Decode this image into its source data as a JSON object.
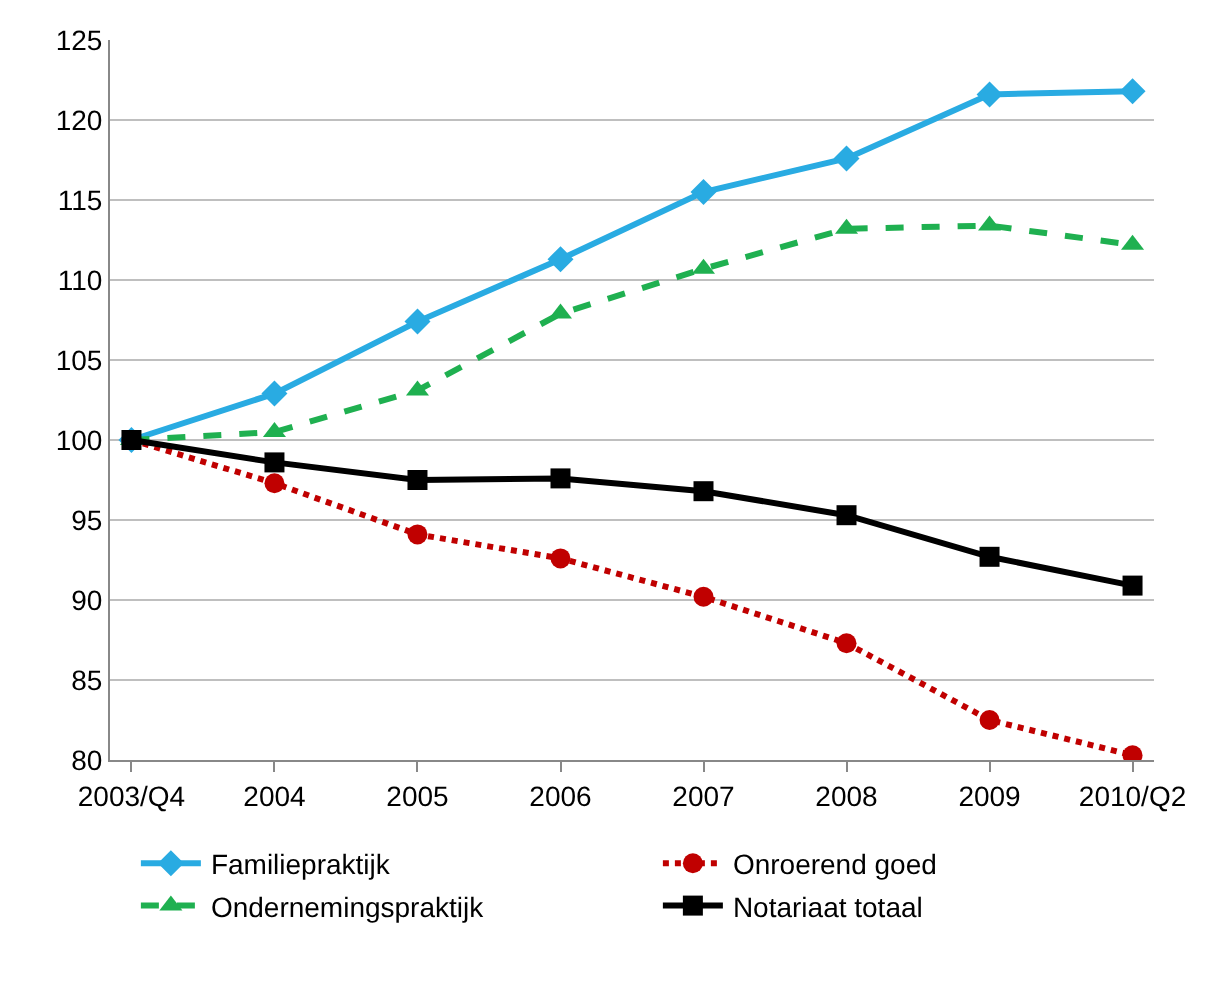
{
  "chart_data": {
    "type": "line",
    "categories": [
      "2003/Q4",
      "2004",
      "2005",
      "2006",
      "2007",
      "2008",
      "2009",
      "2010/Q2"
    ],
    "ylim": [
      80,
      125
    ],
    "yticks": [
      80,
      85,
      90,
      95,
      100,
      105,
      110,
      115,
      120,
      125
    ],
    "grid": "y",
    "legend": "bottom",
    "series": [
      {
        "name": "Familiepraktijk",
        "color": "#29abe2",
        "marker": "diamond",
        "line_style": "solid",
        "values": [
          100,
          102.9,
          107.4,
          111.3,
          115.5,
          117.6,
          121.6,
          121.8
        ]
      },
      {
        "name": "Onroerend goed",
        "color": "#c00000",
        "marker": "circle",
        "line_style": "dotted",
        "values": [
          100,
          97.3,
          94.1,
          92.6,
          90.2,
          87.3,
          82.5,
          80.3
        ]
      },
      {
        "name": "Ondernemingspraktijk",
        "color": "#1fb050",
        "marker": "triangle",
        "line_style": "dashed",
        "values": [
          100,
          100.5,
          103.1,
          107.9,
          110.7,
          113.2,
          113.4,
          112.2
        ]
      },
      {
        "name": "Notariaat totaal",
        "color": "#000000",
        "marker": "square",
        "line_style": "solid",
        "values": [
          100,
          98.6,
          97.5,
          97.6,
          96.8,
          95.3,
          92.7,
          90.9
        ]
      }
    ]
  }
}
